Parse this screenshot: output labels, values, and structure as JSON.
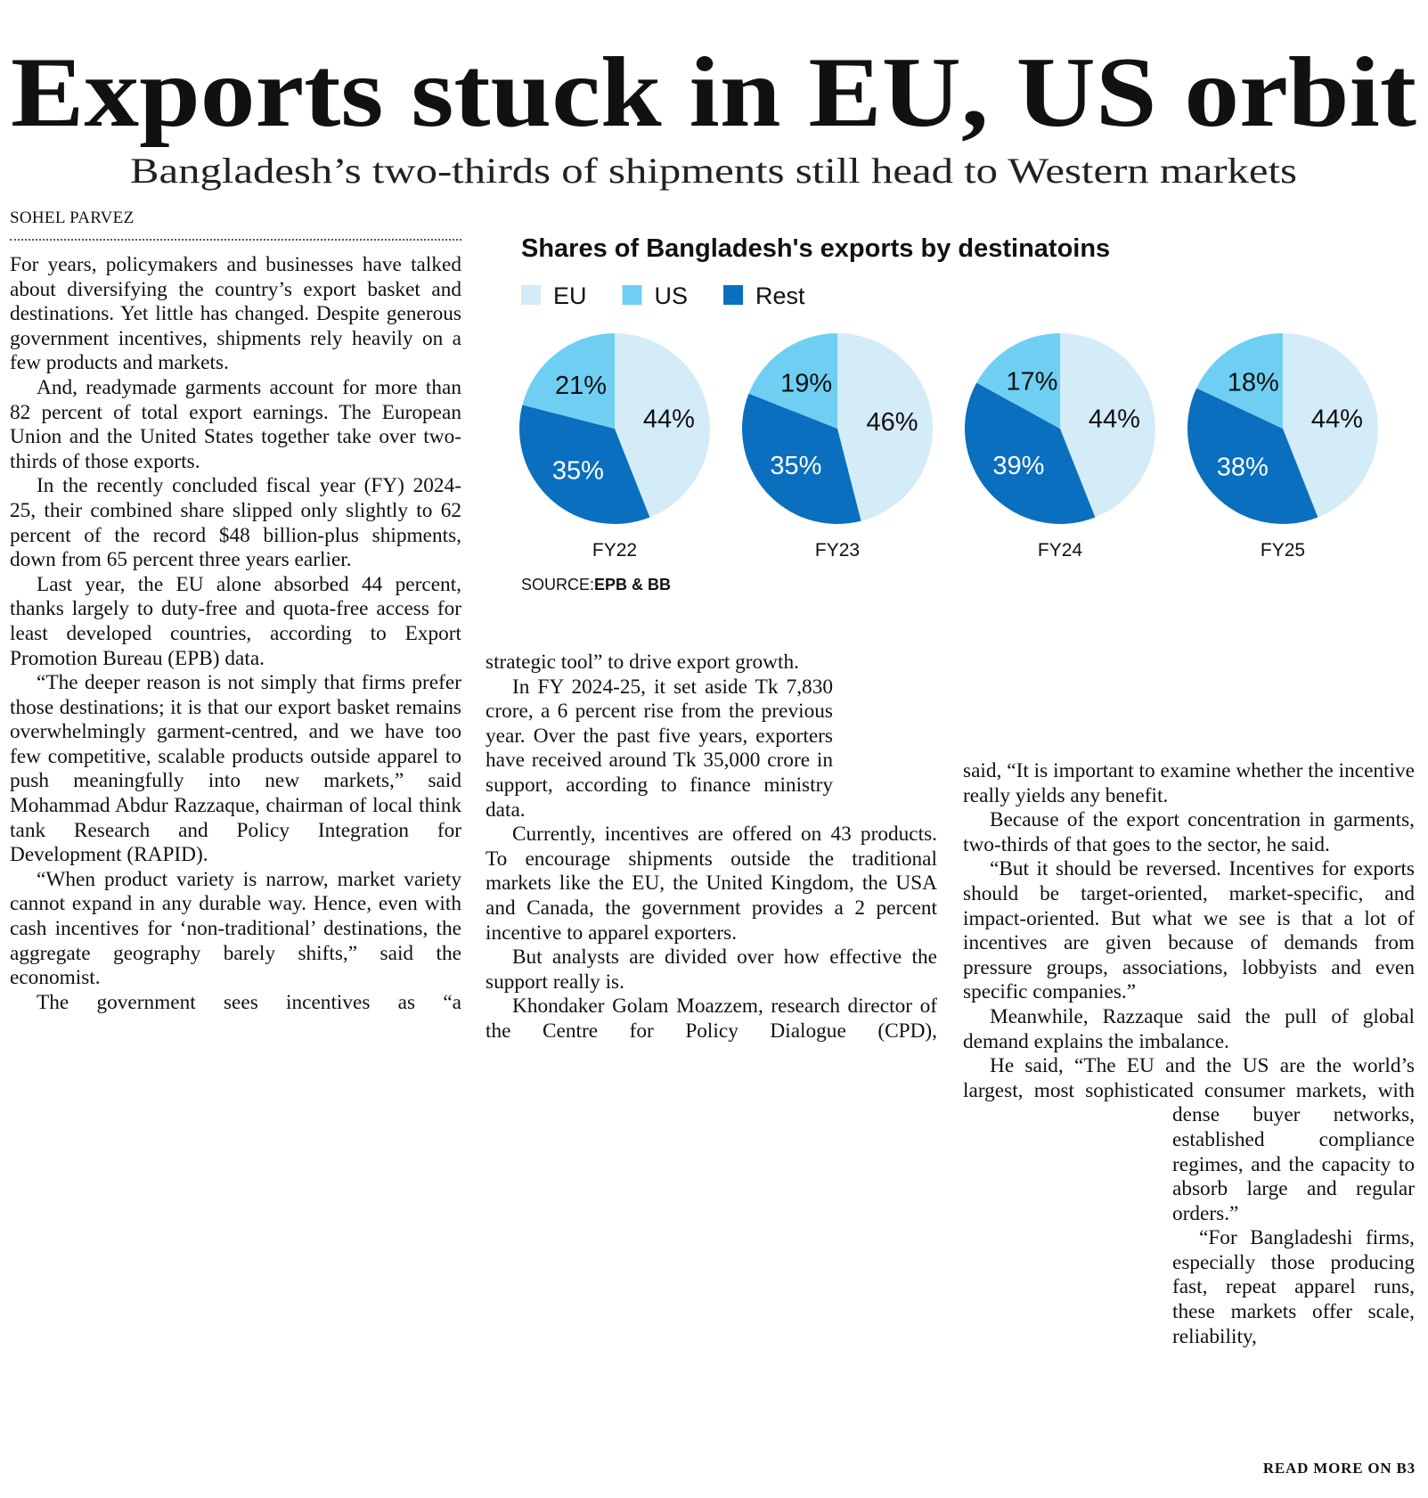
{
  "header": {
    "title": "Exports stuck in EU, US orbit",
    "subtitle": "Bangladesh’s two-thirds of shipments still head to Western markets",
    "byline": "SOHEL PARVEZ"
  },
  "chart_data": {
    "type": "pie",
    "title": "Shares of Bangladesh's exports by destinatoins",
    "categories": [
      "FY22",
      "FY23",
      "FY24",
      "FY25"
    ],
    "series": [
      {
        "name": "EU",
        "color": "#d4ebf8",
        "values": [
          44,
          46,
          44,
          44
        ],
        "value_labels": [
          "44%",
          "46%",
          "44%",
          "44%"
        ]
      },
      {
        "name": "US",
        "color": "#6fcff3",
        "values": [
          21,
          19,
          17,
          18
        ],
        "value_labels": [
          "21%",
          "19%",
          "17%",
          "18%"
        ]
      },
      {
        "name": "Rest",
        "color": "#0a6fbe",
        "values": [
          35,
          35,
          39,
          38
        ],
        "value_labels": [
          "35%",
          "35%",
          "39%",
          "38%"
        ]
      }
    ],
    "source_label": "SOURCE:",
    "source": "EPB & BB"
  },
  "article": {
    "columns": [
      [
        "For years, policymakers and businesses have talked about diversifying the country’s export basket and destinations. Yet little has changed. Despite generous government incentives, shipments rely heavily on a few products and markets.",
        "And, readymade garments account for more than 82 percent of total export earnings. The European Union and the United States together take over two-thirds of those exports.",
        "In the recently concluded fiscal year (FY) 2024-25, their combined share slipped only slightly to 62 percent of the record $48 billion-plus shipments, down from 65 percent three years earlier.",
        "Last year, the EU alone absorbed 44 percent, thanks largely to duty-free and quota-free access for least developed countries, according to Export Promotion Bureau (EPB) data.",
        "“The deeper reason is not simply that firms prefer those destinations; it is that our export basket remains overwhelmingly garment-centred, and we have too few competitive, scalable products outside apparel to push meaningfully into new markets,” said Mohammad Abdur Razzaque, chairman of local think tank Research and Policy Integration for Development (RAPID).",
        "“When product variety is narrow, market variety cannot expand in any durable way. Hence, even with cash incentives for ‘non-traditional’ destinations, the aggregate geography barely shifts,” said the economist.",
        "The government sees incentives as “a"
      ],
      [
        "strategic tool” to drive export growth.",
        "In FY 2024-25, it set aside Tk 7,830 crore, a 6 percent rise from the previous year. Over the past five years, exporters have received around Tk 35,000 crore in support, according to finance ministry data.",
        "Currently, incentives are offered on 43 products. To encourage shipments outside the traditional markets like the EU, the United Kingdom, the USA and Canada, the government provides a 2 percent incentive to apparel exporters.",
        "But analysts are divided over how effective the support really is.",
        "Khondaker Golam Moazzem, research director of the Centre for Policy Dialogue (CPD),"
      ],
      [
        "said, “It is important to examine whether the incentive really yields any benefit.",
        "Because of the export concentration in garments, two-thirds of that goes to the sector, he said.",
        "“But it should be reversed. Incentives for exports should be target-oriented, market-specific, and impact-oriented. But what we see is that a lot of incentives are given because of demands from pressure groups, associations, lobbyists and even specific companies.”",
        "Meanwhile, Razzaque said the pull of global demand explains the imbalance.",
        "He said, “The EU and the US are the world’s largest, most sophisticated consumer markets, with dense buyer networks, established compliance regimes, and the capacity to absorb large and regular orders.”",
        "“For Bangladeshi firms, especially those producing fast, repeat apparel runs, these markets offer scale, reliability,"
      ]
    ],
    "read_more": "READ MORE ON B3"
  }
}
